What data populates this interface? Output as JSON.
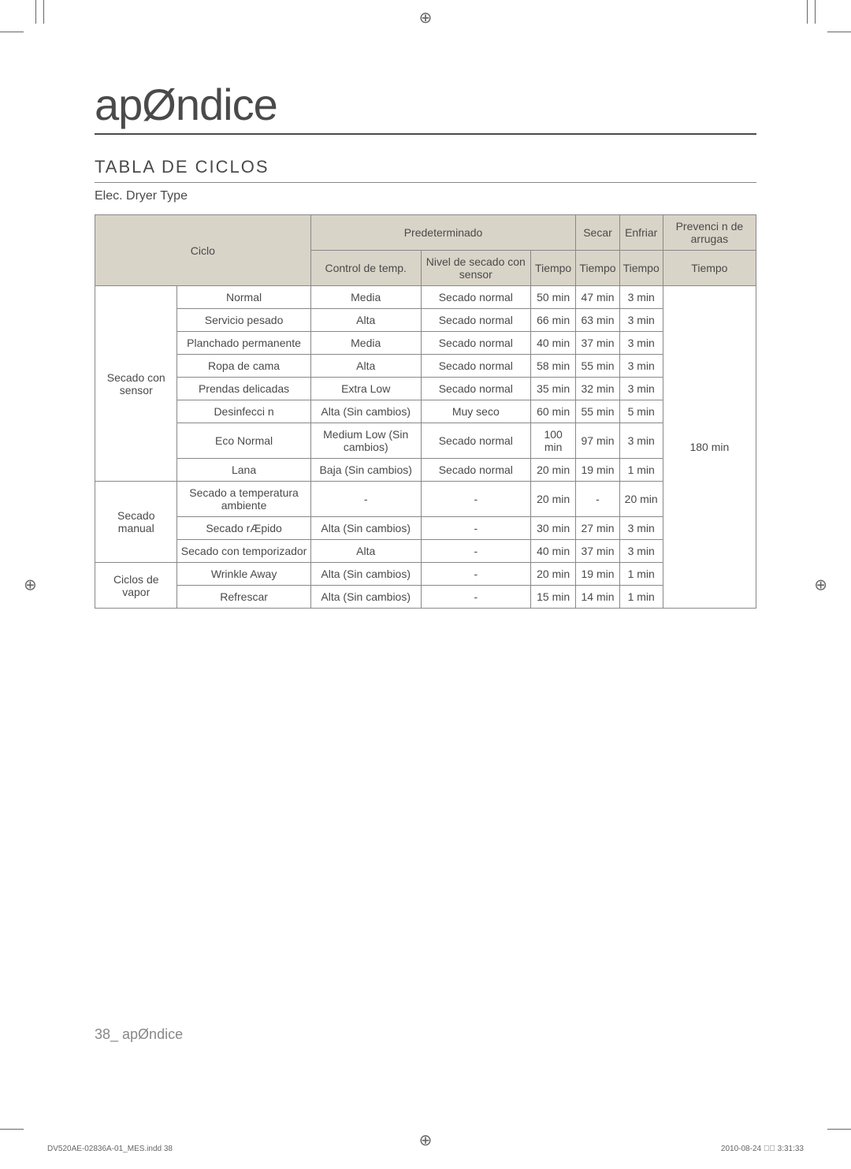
{
  "title": "apØndice",
  "subtitle": "TABLA DE CICLOS",
  "type_label": "Elec. Dryer Type",
  "headers": {
    "ciclo": "Ciclo",
    "predeterminado": "Predeterminado",
    "secar": "Secar",
    "enfriar": "Enfriar",
    "prevencion": "Prevenci n de arrugas",
    "control_temp": "Control de temp.",
    "nivel_secado": "Nivel de secado con sensor",
    "tiempo": "Tiempo"
  },
  "groups": {
    "sensor": "Secado con sensor",
    "manual": "Secado manual",
    "vapor": "Ciclos de vapor"
  },
  "rows": {
    "r1": {
      "sub": "Normal",
      "temp": "Media",
      "nivel": "Secado normal",
      "t1": "50 min",
      "t2": "47 min",
      "t3": "3 min"
    },
    "r2": {
      "sub": "Servicio pesado",
      "temp": "Alta",
      "nivel": "Secado normal",
      "t1": "66 min",
      "t2": "63 min",
      "t3": "3 min"
    },
    "r3": {
      "sub": "Planchado permanente",
      "temp": "Media",
      "nivel": "Secado normal",
      "t1": "40 min",
      "t2": "37 min",
      "t3": "3 min"
    },
    "r4": {
      "sub": "Ropa de cama",
      "temp": "Alta",
      "nivel": "Secado normal",
      "t1": "58 min",
      "t2": "55 min",
      "t3": "3 min"
    },
    "r5": {
      "sub": "Prendas delicadas",
      "temp": "Extra Low",
      "nivel": "Secado normal",
      "t1": "35 min",
      "t2": "32 min",
      "t3": "3 min"
    },
    "r6": {
      "sub": "Desinfecci n",
      "temp": "Alta (Sin cambios)",
      "nivel": "Muy seco",
      "t1": "60 min",
      "t2": "55 min",
      "t3": "5 min"
    },
    "r7": {
      "sub": "Eco Normal",
      "temp": "Medium Low (Sin cambios)",
      "nivel": "Secado normal",
      "t1": "100 min",
      "t2": "97 min",
      "t3": "3 min"
    },
    "r8": {
      "sub": "Lana",
      "temp": "Baja (Sin cambios)",
      "nivel": "Secado normal",
      "t1": "20 min",
      "t2": "19 min",
      "t3": "1 min"
    },
    "r9": {
      "sub": "Secado a temperatura ambiente",
      "temp": "-",
      "nivel": "-",
      "t1": "20 min",
      "t2": "-",
      "t3": "20 min"
    },
    "r10": {
      "sub": "Secado rÆpido",
      "temp": "Alta (Sin cambios)",
      "nivel": "-",
      "t1": "30 min",
      "t2": "27 min",
      "t3": "3 min"
    },
    "r11": {
      "sub": "Secado con temporizador",
      "temp": "Alta",
      "nivel": "-",
      "t1": "40 min",
      "t2": "37 min",
      "t3": "3 min"
    },
    "r12": {
      "sub": "Wrinkle Away",
      "temp": "Alta (Sin cambios)",
      "nivel": "-",
      "t1": "20 min",
      "t2": "19 min",
      "t3": "1 min"
    },
    "r13": {
      "sub": "Refrescar",
      "temp": "Alta (Sin cambios)",
      "nivel": "-",
      "t1": "15 min",
      "t2": "14 min",
      "t3": "1 min"
    }
  },
  "prevencion_value": "180 min",
  "footer": "38_ apØndice",
  "doc_footer": "DV520AE-02836A-01_MES.indd   38",
  "date_footer": "2010-08-24   ￿￿ 3:31:33",
  "colors": {
    "header_bg": "#d9d4c8",
    "border": "#888888",
    "text": "#4a4a4a"
  }
}
